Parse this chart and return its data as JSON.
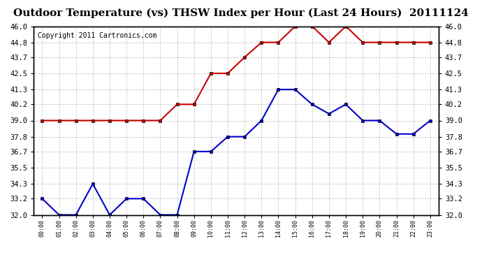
{
  "title": "Outdoor Temperature (vs) THSW Index per Hour (Last 24 Hours)  20111124",
  "copyright": "Copyright 2011 Cartronics.com",
  "x_labels": [
    "00:00",
    "01:00",
    "02:00",
    "03:00",
    "04:00",
    "05:00",
    "06:00",
    "07:00",
    "08:00",
    "09:00",
    "10:00",
    "11:00",
    "12:00",
    "13:00",
    "14:00",
    "15:00",
    "16:00",
    "17:00",
    "18:00",
    "19:00",
    "20:00",
    "21:00",
    "22:00",
    "23:00"
  ],
  "blue_data": [
    33.2,
    32.0,
    32.0,
    34.3,
    32.0,
    33.2,
    33.2,
    32.0,
    32.0,
    36.7,
    36.7,
    37.8,
    37.8,
    39.0,
    41.3,
    41.3,
    40.2,
    39.5,
    40.2,
    39.0,
    39.0,
    38.0,
    38.0,
    39.0
  ],
  "red_data": [
    39.0,
    39.0,
    39.0,
    39.0,
    39.0,
    39.0,
    39.0,
    39.0,
    40.2,
    40.2,
    42.5,
    42.5,
    43.7,
    44.8,
    44.8,
    46.0,
    46.0,
    44.8,
    46.0,
    44.8,
    44.8,
    44.8,
    44.8,
    44.8
  ],
  "ylim": [
    32.0,
    46.0
  ],
  "yticks": [
    32.0,
    33.2,
    34.3,
    35.5,
    36.7,
    37.8,
    39.0,
    40.2,
    41.3,
    42.5,
    43.7,
    44.8,
    46.0
  ],
  "blue_color": "#0000cc",
  "red_color": "#cc0000",
  "bg_color": "#ffffff",
  "grid_color": "#bbbbbb",
  "title_fontsize": 11,
  "copyright_fontsize": 7
}
